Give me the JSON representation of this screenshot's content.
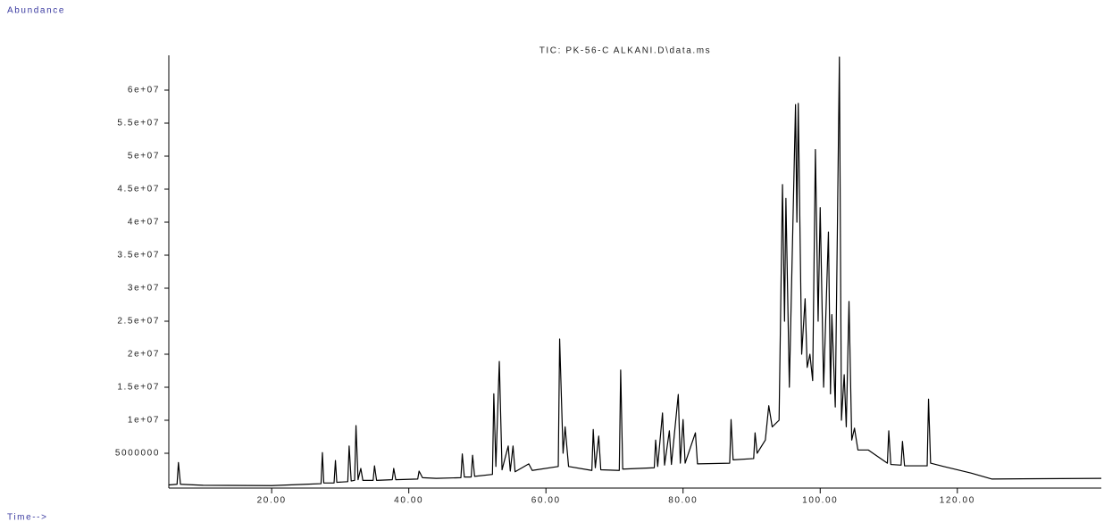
{
  "chart_data": {
    "type": "line",
    "title": "TIC: PK-56-C ALKANI.D\\data.ms",
    "y_label": "Abundance",
    "x_label": "Time-->",
    "color": "#000000",
    "xlim": [
      5,
      141
    ],
    "ylim": [
      0,
      65000000
    ],
    "xticks": [
      {
        "value": 20,
        "label": "20.00"
      },
      {
        "value": 40,
        "label": "40.00"
      },
      {
        "value": 60,
        "label": "60.00"
      },
      {
        "value": 80,
        "label": "80.00"
      },
      {
        "value": 100,
        "label": "100.00"
      },
      {
        "value": 120,
        "label": "120.00"
      }
    ],
    "yticks": [
      5000000,
      {
        "value": 10000000,
        "label": "1e+07"
      },
      {
        "value": 15000000,
        "label": "1.5e+07"
      },
      {
        "value": 20000000,
        "label": "2e+07"
      },
      {
        "value": 25000000,
        "label": "2.5e+07"
      },
      {
        "value": 30000000,
        "label": "3e+07"
      },
      {
        "value": 35000000,
        "label": "3.5e+07"
      },
      {
        "value": 40000000,
        "label": "4e+07"
      },
      {
        "value": 45000000,
        "label": "4.5e+07"
      },
      {
        "value": 50000000,
        "label": "5e+07"
      },
      {
        "value": 55000000,
        "label": "5.5e+07"
      },
      {
        "value": 60000000,
        "label": "6e+07"
      }
    ],
    "x": [
      5,
      6.2,
      6.4,
      6.7,
      10,
      20,
      25,
      27.2,
      27.4,
      27.6,
      29.1,
      29.3,
      29.5,
      31.1,
      31.3,
      31.6,
      32.1,
      32.3,
      32.6,
      33,
      33.3,
      34.8,
      35,
      35.3,
      37.6,
      37.8,
      38.1,
      41.3,
      41.5,
      42,
      44,
      47.6,
      47.8,
      48.1,
      49.1,
      49.3,
      49.6,
      52.2,
      52.4,
      52.7,
      53.2,
      53.6,
      54.5,
      54.8,
      55.2,
      55.5,
      57.5,
      58,
      61.8,
      62,
      62.5,
      62.8,
      63.3,
      66.7,
      66.9,
      67.2,
      67.7,
      68,
      70.7,
      70.9,
      71.2,
      75.8,
      76,
      76.3,
      77,
      77.3,
      78,
      78.3,
      79.3,
      79.6,
      80,
      80.3,
      81.8,
      82.1,
      86.8,
      87,
      87.3,
      90.3,
      90.5,
      90.8,
      92,
      92.5,
      93,
      94,
      94.5,
      94.8,
      95,
      95.5,
      96.4,
      96.6,
      96.8,
      97.3,
      97.8,
      98.1,
      98.5,
      98.9,
      99.3,
      99.7,
      100,
      100.5,
      101.2,
      101.5,
      101.7,
      102.2,
      102.8,
      103.1,
      103.5,
      103.8,
      104.2,
      104.6,
      105,
      105.5,
      107,
      109.8,
      110,
      110.3,
      111.8,
      112,
      112.3,
      115.6,
      115.8,
      116.1,
      118,
      122,
      125,
      141
    ],
    "values": [
      200000,
      300000,
      3600000,
      300000,
      150000,
      100000,
      300000,
      400000,
      5100000,
      500000,
      500000,
      3900000,
      600000,
      700000,
      6100000,
      800000,
      900000,
      9200000,
      1000000,
      2700000,
      900000,
      900000,
      3100000,
      900000,
      1000000,
      2700000,
      1000000,
      1100000,
      2300000,
      1300000,
      1200000,
      1300000,
      4900000,
      1400000,
      1400000,
      4700000,
      1500000,
      1800000,
      14000000,
      3000000,
      18900000,
      2500000,
      6100000,
      2300000,
      6100000,
      2200000,
      3400000,
      2400000,
      3000000,
      22300000,
      5000000,
      9000000,
      3000000,
      2400000,
      8600000,
      2800000,
      7600000,
      2500000,
      2400000,
      17600000,
      2600000,
      2800000,
      7000000,
      3000000,
      11100000,
      3200000,
      8400000,
      3300000,
      13900000,
      3500000,
      10100000,
      3500000,
      8100000,
      3400000,
      3500000,
      10100000,
      4000000,
      4200000,
      8100000,
      5000000,
      7000000,
      12200000,
      9000000,
      10000000,
      45700000,
      25000000,
      43600000,
      15000000,
      57800000,
      40000000,
      58000000,
      20000000,
      28400000,
      18000000,
      20000000,
      16000000,
      51000000,
      25000000,
      42200000,
      15000000,
      38500000,
      14000000,
      26000000,
      12000000,
      65000000,
      10000000,
      16900000,
      9000000,
      28000000,
      7000000,
      8800000,
      5500000,
      5500000,
      3500000,
      8400000,
      3300000,
      3200000,
      6800000,
      3100000,
      3100000,
      13200000,
      3500000,
      3000000,
      2000000,
      1100000,
      1200000
    ]
  }
}
